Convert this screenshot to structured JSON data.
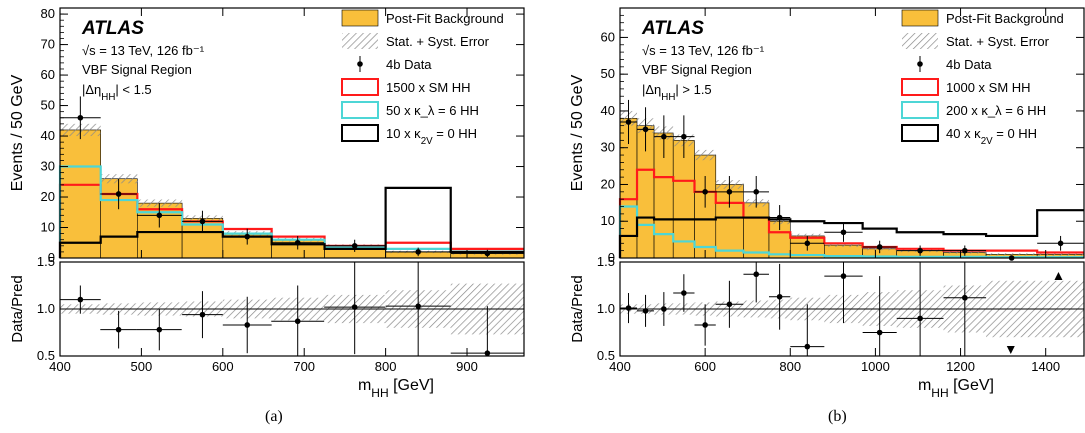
{
  "colors": {
    "background_fill": "#f9bf3b",
    "background_edge": "#000000",
    "sm_hh": "#ff1a1a",
    "kl6_hh": "#4dd6d6",
    "k2v0_hh": "#000000",
    "data": "#000000",
    "hatch": "#8a8a8a"
  },
  "chart_data": [
    {
      "type": "bar",
      "panel_label": "(a)",
      "atlas_label": "ATLAS",
      "energy_label": "√s = 13 TeV, 126 fb⁻¹",
      "region_label": "VBF Signal Region",
      "cut_label": "|Δη_HH| < 1.5",
      "xlabel": "m_HH [GeV]",
      "ylabel": "Events / 50 GeV",
      "ratio_ylabel": "Data/Pred",
      "xlim": [
        400,
        970
      ],
      "ylim": [
        0,
        82
      ],
      "ratio_ylim": [
        0.5,
        1.5
      ],
      "xticks": [
        400,
        500,
        600,
        700,
        800,
        900
      ],
      "yticks": [
        0,
        10,
        20,
        30,
        40,
        50,
        60,
        70,
        80
      ],
      "ratio_yticks": [
        0.5,
        1.0,
        1.5
      ],
      "bin_edges": [
        400,
        450,
        495,
        550,
        600,
        660,
        725,
        800,
        880,
        970
      ],
      "legend": [
        "Post-Fit Background",
        "Stat. + Syst. Error",
        "4b Data",
        "1500 x SM HH",
        "50 x κ_λ = 6 HH",
        "10 x κ_2V = 0 HH"
      ],
      "series": [
        {
          "name": "Post-Fit Background",
          "kind": "fill",
          "values": [
            42,
            26,
            18,
            13,
            8,
            6,
            4,
            2,
            1.5
          ],
          "errors": [
            2,
            1.5,
            1.2,
            1,
            0.8,
            0.6,
            0.5,
            0.4,
            0.4
          ]
        },
        {
          "name": "1500 x SM HH",
          "kind": "step",
          "values": [
            24,
            21,
            16,
            12,
            9.5,
            7,
            4,
            5,
            3
          ]
        },
        {
          "name": "50 x κ_λ = 6 HH",
          "kind": "step",
          "values": [
            30,
            19,
            15,
            11,
            8,
            6,
            3.5,
            3,
            2
          ]
        },
        {
          "name": "10 x κ_2V = 0 HH",
          "kind": "step",
          "values": [
            5,
            7,
            8.5,
            8.5,
            7,
            4.5,
            3,
            23,
            2
          ]
        },
        {
          "name": "4b Data",
          "kind": "points",
          "x": [
            425,
            472,
            522,
            575,
            630,
            692,
            762,
            840,
            925
          ],
          "y": [
            46,
            21,
            14,
            12,
            7,
            5,
            4,
            2,
            1.5
          ],
          "yerr": [
            7,
            5,
            4,
            3.5,
            2.6,
            2.2,
            2,
            1.4,
            1.2
          ]
        }
      ],
      "ratio": {
        "x": [
          425,
          472,
          522,
          575,
          630,
          692,
          762,
          840,
          925
        ],
        "y": [
          1.1,
          0.78,
          0.78,
          0.94,
          0.83,
          0.87,
          1.02,
          1.03,
          0.53
        ],
        "yerr": [
          0.15,
          0.2,
          0.22,
          0.25,
          0.3,
          0.38,
          0.5,
          0.55,
          0.5
        ],
        "band": [
          0.05,
          0.06,
          0.07,
          0.08,
          0.1,
          0.12,
          0.15,
          0.2,
          0.27
        ]
      }
    },
    {
      "type": "bar",
      "panel_label": "(b)",
      "atlas_label": "ATLAS",
      "energy_label": "√s = 13 TeV, 126 fb⁻¹",
      "region_label": "VBF Signal Region",
      "cut_label": "|Δη_HH| > 1.5",
      "xlabel": "m_HH [GeV]",
      "ylabel": "Events / 50 GeV",
      "ratio_ylabel": "Data/Pred",
      "xlim": [
        400,
        1490
      ],
      "ylim": [
        0,
        68
      ],
      "ratio_ylim": [
        0.5,
        1.5
      ],
      "xticks": [
        400,
        600,
        800,
        1000,
        1200,
        1400
      ],
      "yticks": [
        0,
        10,
        20,
        30,
        40,
        50,
        60
      ],
      "ratio_yticks": [
        0.5,
        1.0,
        1.5
      ],
      "bin_edges": [
        400,
        440,
        480,
        525,
        575,
        625,
        690,
        750,
        800,
        880,
        970,
        1050,
        1160,
        1260,
        1380,
        1490
      ],
      "legend": [
        "Post-Fit Background",
        "Stat. + Syst. Error",
        "4b Data",
        "1000 x SM HH",
        "200 x κ_λ = 6 HH",
        "40 x κ_2V = 0 HH"
      ],
      "series": [
        {
          "name": "Post-Fit Background",
          "kind": "fill",
          "values": [
            38,
            36,
            34,
            32,
            28,
            20,
            15,
            10,
            6,
            3.5,
            2.5,
            2,
            1.5,
            1,
            1
          ],
          "errors": [
            2,
            2,
            1.8,
            1.6,
            1.4,
            1.2,
            1,
            0.8,
            0.6,
            0.5,
            0.4,
            0.4,
            0.3,
            0.3,
            0.4
          ]
        },
        {
          "name": "1000 x SM HH",
          "kind": "step",
          "values": [
            16,
            24,
            22,
            21,
            18,
            15,
            11,
            7,
            5.5,
            4,
            3,
            2.5,
            2,
            2,
            1.5
          ]
        },
        {
          "name": "200 x κ_λ = 6 HH",
          "kind": "step",
          "values": [
            14,
            9,
            6.5,
            4.5,
            3,
            2,
            1.5,
            1,
            0.8,
            0.5,
            0.4,
            0.3,
            0.3,
            0.2,
            0.2
          ]
        },
        {
          "name": "40 x κ_2V = 0 HH",
          "kind": "step",
          "values": [
            6,
            11,
            10.5,
            10.5,
            10.5,
            11,
            11,
            10.5,
            10,
            9.5,
            8,
            7,
            6.5,
            6,
            13
          ]
        },
        {
          "name": "4b Data",
          "kind": "points",
          "x": [
            420,
            460,
            503,
            550,
            600,
            657,
            720,
            775,
            840,
            925,
            1010,
            1105,
            1210,
            1320,
            1435
          ],
          "y": [
            37,
            35,
            33,
            33,
            18,
            18,
            18,
            11,
            4,
            7,
            3,
            2,
            2,
            0,
            4
          ],
          "yerr": [
            6,
            6,
            5.8,
            5.8,
            4.3,
            4.3,
            4.3,
            3.4,
            2,
            2.6,
            1.7,
            1.4,
            1.4,
            0,
            2
          ]
        }
      ],
      "ratio": {
        "x": [
          420,
          460,
          503,
          550,
          600,
          657,
          720,
          775,
          840,
          925,
          1010,
          1105,
          1210,
          1320,
          1435
        ],
        "y": [
          1.01,
          0.98,
          1.0,
          1.17,
          0.83,
          1.05,
          1.37,
          1.13,
          0.6,
          1.35,
          0.75,
          0.9,
          1.12,
          null,
          null
        ],
        "yerr": [
          0.16,
          0.17,
          0.18,
          0.2,
          0.22,
          0.25,
          0.3,
          0.35,
          0.45,
          0.5,
          0.6,
          0.7,
          0.75,
          0,
          0
        ],
        "markers": [
          {
            "x": 1318,
            "dir": "down"
          },
          {
            "x": 1430,
            "dir": "up"
          }
        ],
        "band": [
          0.05,
          0.05,
          0.06,
          0.06,
          0.07,
          0.08,
          0.09,
          0.1,
          0.12,
          0.15,
          0.18,
          0.2,
          0.25,
          0.3,
          0.3
        ]
      }
    }
  ]
}
